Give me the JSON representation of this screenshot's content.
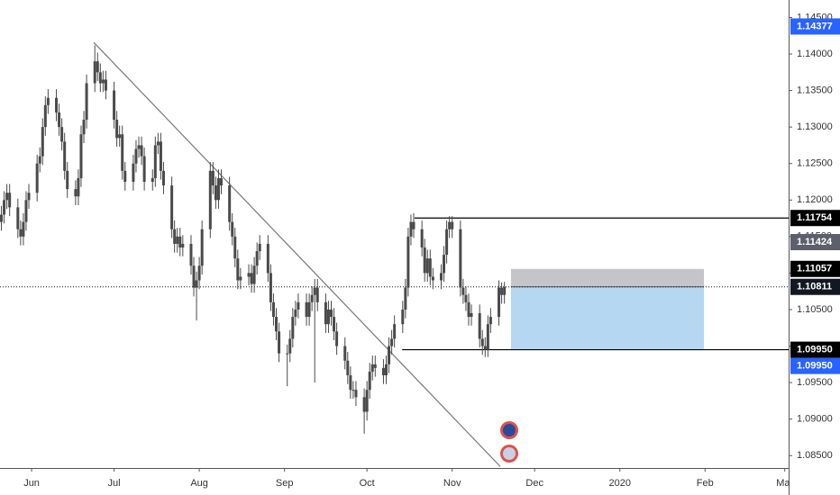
{
  "chart_data": {
    "type": "candlestick",
    "color": "#4a4a4a",
    "x": [
      -11,
      -10,
      -9,
      -8,
      -5,
      -4,
      -3,
      -2,
      -1,
      2,
      3,
      4,
      5,
      6,
      9,
      10,
      11,
      12,
      13,
      16,
      17,
      18,
      19,
      20,
      23,
      24,
      25,
      26,
      27,
      30,
      31,
      32,
      33,
      34,
      37,
      38,
      39,
      40,
      41,
      44,
      45,
      46,
      47,
      48,
      51,
      52,
      53,
      54,
      55,
      58,
      59,
      60,
      61,
      62,
      65,
      66,
      67,
      68,
      69,
      72,
      73,
      74,
      75,
      76,
      79,
      80,
      81,
      82,
      83,
      86,
      87,
      88,
      89,
      90,
      93,
      94,
      95,
      96,
      97,
      100,
      101,
      102,
      103,
      104,
      107,
      108,
      109,
      110,
      111,
      114,
      115,
      116,
      117,
      118,
      121,
      122,
      123,
      124,
      125,
      128,
      129,
      130,
      131,
      132,
      135,
      136,
      137,
      138,
      139,
      142,
      143,
      144,
      145,
      146,
      149,
      150,
      151,
      152,
      153,
      156,
      157,
      158,
      159,
      160,
      163,
      164,
      165,
      166,
      167,
      170,
      171,
      172
    ],
    "open": [
      1.117,
      1.118,
      1.12,
      1.121,
      1.119,
      1.116,
      1.115,
      1.117,
      1.12,
      1.121,
      1.125,
      1.126,
      1.13,
      1.133,
      1.134,
      1.132,
      1.13,
      1.128,
      1.124,
      1.1215,
      1.1205,
      1.123,
      1.129,
      1.131,
      1.136,
      1.139,
      1.1375,
      1.136,
      1.1365,
      1.135,
      1.131,
      1.1285,
      1.129,
      1.124,
      1.1225,
      1.125,
      1.127,
      1.1275,
      1.126,
      1.1225,
      1.123,
      1.1275,
      1.128,
      1.124,
      1.122,
      1.116,
      1.114,
      1.115,
      1.1135,
      1.114,
      1.111,
      1.108,
      1.109,
      1.111,
      1.116,
      1.124,
      1.122,
      1.12,
      1.123,
      1.122,
      1.117,
      1.115,
      1.112,
      1.109,
      1.1095,
      1.11,
      1.1085,
      1.111,
      1.113,
      1.114,
      1.11,
      1.106,
      1.104,
      1.102,
      1.099,
      1.099,
      1.101,
      1.104,
      1.105,
      1.106,
      1.104,
      1.106,
      1.107,
      1.108,
      1.106,
      1.103,
      1.105,
      1.104,
      1.102,
      1.1,
      1.098,
      1.096,
      1.094,
      1.094,
      1.093,
      1.091,
      1.094,
      1.0965,
      1.0975,
      1.097,
      1.096,
      1.0975,
      1.1,
      1.101,
      1.103,
      1.105,
      1.108,
      1.115,
      1.117,
      1.116,
      1.1135,
      1.11,
      1.112,
      1.1095,
      1.109,
      1.11,
      1.1125,
      1.116,
      1.117,
      1.116,
      1.108,
      1.107,
      1.106,
      1.104,
      1.1045,
      1.101,
      1.1,
      1.0995,
      1.103,
      1.104,
      1.108,
      1.107
    ],
    "high": [
      1.1192,
      1.1212,
      1.1222,
      1.1222,
      1.1202,
      1.1172,
      1.1182,
      1.1212,
      1.1222,
      1.1262,
      1.1272,
      1.1312,
      1.1342,
      1.1352,
      1.1352,
      1.1332,
      1.1312,
      1.1292,
      1.1252,
      1.1227,
      1.1242,
      1.1302,
      1.1322,
      1.1372,
      1.1412,
      1.1402,
      1.1387,
      1.1377,
      1.1377,
      1.1362,
      1.1322,
      1.1302,
      1.1302,
      1.1252,
      1.1262,
      1.1282,
      1.1287,
      1.1287,
      1.1272,
      1.1242,
      1.1287,
      1.1292,
      1.1292,
      1.1252,
      1.1232,
      1.1172,
      1.1162,
      1.1162,
      1.1152,
      1.1152,
      1.1122,
      1.1102,
      1.1122,
      1.1172,
      1.1252,
      1.1252,
      1.1232,
      1.1242,
      1.1242,
      1.1232,
      1.1182,
      1.1162,
      1.1132,
      1.1107,
      1.1112,
      1.1112,
      1.1122,
      1.1142,
      1.1152,
      1.1152,
      1.1112,
      1.1072,
      1.1052,
      1.1032,
      1.1002,
      1.1022,
      1.1052,
      1.1062,
      1.1072,
      1.1072,
      1.1072,
      1.1082,
      1.1092,
      1.1092,
      1.1072,
      1.1062,
      1.1062,
      1.1052,
      1.1032,
      1.1012,
      1.0992,
      1.0972,
      1.0952,
      1.0952,
      1.0942,
      1.0952,
      1.0977,
      1.0987,
      1.0987,
      1.0982,
      1.0987,
      1.1012,
      1.1022,
      1.1042,
      1.1062,
      1.1092,
      1.1162,
      1.118,
      1.1182,
      1.1172,
      1.1147,
      1.1132,
      1.1132,
      1.1107,
      1.1112,
      1.1137,
      1.1172,
      1.1178,
      1.1178,
      1.1172,
      1.1092,
      1.1082,
      1.1072,
      1.1057,
      1.1057,
      1.1022,
      1.1012,
      1.1042,
      1.1052,
      1.109,
      1.1087,
      1.1088
    ],
    "low": [
      1.1158,
      1.1168,
      1.1188,
      1.1178,
      1.1148,
      1.1138,
      1.1138,
      1.1158,
      1.1188,
      1.1198,
      1.1238,
      1.1248,
      1.1288,
      1.1318,
      1.1308,
      1.1288,
      1.1268,
      1.1228,
      1.1203,
      1.1193,
      1.1193,
      1.1218,
      1.1278,
      1.1298,
      1.1348,
      1.1363,
      1.1348,
      1.1348,
      1.1338,
      1.1298,
      1.1273,
      1.1273,
      1.1228,
      1.1213,
      1.1213,
      1.1238,
      1.1258,
      1.1248,
      1.1213,
      1.1213,
      1.1218,
      1.1263,
      1.1228,
      1.1208,
      1.1148,
      1.1128,
      1.1128,
      1.1123,
      1.1123,
      1.1098,
      1.1068,
      1.1035,
      1.1078,
      1.1098,
      1.1148,
      1.1208,
      1.1188,
      1.1188,
      1.1208,
      1.1158,
      1.1138,
      1.1108,
      1.1078,
      1.1078,
      1.1083,
      1.1073,
      1.1073,
      1.1098,
      1.1118,
      1.1088,
      1.1048,
      1.1028,
      1.1008,
      1.0978,
      1.0945,
      1.0978,
      1.0998,
      1.1028,
      1.1038,
      1.1028,
      1.1028,
      1.1048,
      1.095,
      1.1048,
      1.1018,
      1.1018,
      1.1028,
      1.1008,
      1.0988,
      1.0968,
      1.0948,
      1.0928,
      1.0928,
      1.0918,
      1.088,
      1.0898,
      1.0928,
      1.0953,
      1.0958,
      1.0948,
      1.0948,
      1.0963,
      1.0988,
      1.0998,
      1.1018,
      1.1038,
      1.1068,
      1.1138,
      1.1148,
      1.1123,
      1.1088,
      1.1088,
      1.1083,
      1.1078,
      1.1078,
      1.1088,
      1.1113,
      1.1148,
      1.1148,
      1.1068,
      1.1058,
      1.1048,
      1.1028,
      1.1028,
      1.0998,
      1.0988,
      1.0985,
      1.0985,
      1.1018,
      1.1028,
      1.1058,
      1.1058
    ],
    "close": [
      1.118,
      1.12,
      1.121,
      1.119,
      1.116,
      1.115,
      1.117,
      1.12,
      1.121,
      1.125,
      1.126,
      1.13,
      1.133,
      1.134,
      1.132,
      1.13,
      1.128,
      1.124,
      1.1215,
      1.1205,
      1.123,
      1.129,
      1.131,
      1.136,
      1.139,
      1.1375,
      1.136,
      1.1365,
      1.135,
      1.131,
      1.1285,
      1.129,
      1.124,
      1.1225,
      1.125,
      1.127,
      1.1275,
      1.126,
      1.1225,
      1.123,
      1.1275,
      1.128,
      1.124,
      1.122,
      1.116,
      1.114,
      1.115,
      1.1135,
      1.114,
      1.111,
      1.108,
      1.109,
      1.111,
      1.116,
      1.124,
      1.122,
      1.12,
      1.123,
      1.122,
      1.117,
      1.115,
      1.112,
      1.109,
      1.1095,
      1.11,
      1.1085,
      1.111,
      1.113,
      1.114,
      1.11,
      1.106,
      1.104,
      1.102,
      1.099,
      1.099,
      1.101,
      1.104,
      1.105,
      1.106,
      1.104,
      1.106,
      1.107,
      1.108,
      1.106,
      1.103,
      1.105,
      1.104,
      1.102,
      1.1,
      1.098,
      1.096,
      1.094,
      1.094,
      1.093,
      1.091,
      1.094,
      1.0965,
      1.0975,
      1.097,
      1.096,
      1.0975,
      1.1,
      1.101,
      1.103,
      1.105,
      1.108,
      1.115,
      1.117,
      1.116,
      1.1135,
      1.11,
      1.112,
      1.1095,
      1.109,
      1.11,
      1.1125,
      1.116,
      1.117,
      1.116,
      1.108,
      1.107,
      1.106,
      1.104,
      1.1045,
      1.101,
      1.1,
      1.0995,
      1.103,
      1.104,
      1.108,
      1.107,
      1.1081
    ],
    "xlim": [
      -11.5,
      275.4
    ],
    "xticks": [
      {
        "value": 0,
        "label": "Jun"
      },
      {
        "value": 30,
        "label": "Jul"
      },
      {
        "value": 61,
        "label": "Aug"
      },
      {
        "value": 92,
        "label": "Sep"
      },
      {
        "value": 122,
        "label": "Oct"
      },
      {
        "value": 153,
        "label": "Nov"
      },
      {
        "value": 183,
        "label": "Dec"
      },
      {
        "value": 214,
        "label": "2020"
      },
      {
        "value": 245,
        "label": "Feb"
      },
      {
        "value": 274,
        "label": "Mar"
      }
    ],
    "ylim": [
      1.0833,
      1.1474
    ],
    "yticks": [
      {
        "value": 1.085,
        "label": "1.08500"
      },
      {
        "value": 1.09,
        "label": "1.09000"
      },
      {
        "value": 1.095,
        "label": "1.09500"
      },
      {
        "value": 1.1,
        "label": "1.10000"
      },
      {
        "value": 1.105,
        "label": "1.10500"
      },
      {
        "value": 1.11,
        "label": "1.11000"
      },
      {
        "value": 1.115,
        "label": "1.11500"
      },
      {
        "value": 1.12,
        "label": "1.12000"
      },
      {
        "value": 1.125,
        "label": "1.12500"
      },
      {
        "value": 1.13,
        "label": "1.13000"
      },
      {
        "value": 1.135,
        "label": "1.13500"
      },
      {
        "value": 1.14,
        "label": "1.14000"
      },
      {
        "value": 1.145,
        "label": "1.14500"
      }
    ],
    "grid": false,
    "trendline": {
      "x": [
        22.6,
        170.5
      ],
      "y": [
        1.1416,
        1.0835
      ],
      "color": "#787878"
    },
    "levels": [
      {
        "value": 1.11754,
        "x": 139.3,
        "color": "#000000"
      },
      {
        "value": 1.0995,
        "x": 134.8,
        "color": "#000000"
      }
    ],
    "current_price": 1.10811,
    "position": {
      "x": [
        174.4,
        244.6
      ],
      "stop": 1.11057,
      "entry": 1.10811,
      "target": 1.0995,
      "stop_color": "#c4c5c9",
      "target_color": "#b6d7f2"
    },
    "price_badges": [
      {
        "value": 1.14377,
        "label": "1.14377",
        "color": "#2962ff"
      },
      {
        "value": 1.11754,
        "label": "1.11754",
        "color": "#000000"
      },
      {
        "value": 1.11424,
        "label": "1.11424",
        "color": "#5d606b"
      },
      {
        "value": 1.11057,
        "label": "1.11057",
        "color": "#000000"
      },
      {
        "value": 1.10811,
        "label": "1.10811",
        "color": "#131722"
      },
      {
        "value": 1.0995,
        "label": "1.09950",
        "color": "#000000"
      },
      {
        "value": 1.0995,
        "label": "1.09950",
        "color": "#2962ff"
      }
    ]
  }
}
